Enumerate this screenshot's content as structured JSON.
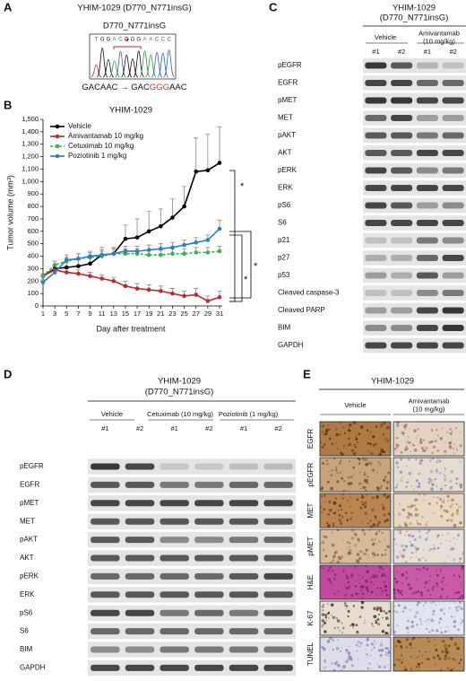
{
  "panel_labels": [
    "A",
    "B",
    "C",
    "D",
    "E"
  ],
  "sequencing": {
    "title": "YHIM-1029 (D770_N771insG)",
    "mutation": "D770_N771insG",
    "marker": "*",
    "trace_bases": [
      "T",
      "G",
      "G",
      "A",
      "C",
      "G",
      "G",
      "G",
      "A",
      "A",
      "C",
      "C",
      "C"
    ],
    "change_before": "GACAAC → GAC",
    "change_inserted": "GGG",
    "change_after": "AAC"
  },
  "chart_data": {
    "type": "line",
    "title": "YHIM-1029",
    "x_label": "Day after treatment",
    "y_label": "Tumor volume (mm³)",
    "x": [
      1,
      3,
      5,
      7,
      9,
      11,
      13,
      15,
      17,
      19,
      21,
      23,
      25,
      27,
      29,
      31
    ],
    "xlim": [
      1,
      31
    ],
    "xticks": [
      1,
      3,
      5,
      7,
      9,
      11,
      13,
      15,
      17,
      19,
      21,
      23,
      25,
      27,
      29,
      31
    ],
    "ylim": [
      0,
      1500
    ],
    "yticks": [
      0,
      100,
      200,
      300,
      400,
      500,
      600,
      700,
      800,
      900,
      {
        "value": 1000,
        "label": "1,000"
      },
      {
        "value": 1100,
        "label": "1,100"
      },
      {
        "value": 1200,
        "label": "1,200"
      },
      {
        "value": 1300,
        "label": "1,300"
      },
      {
        "value": 1400,
        "label": "1,400"
      },
      {
        "value": 1500,
        "label": "1,500"
      }
    ],
    "legend": "upper left",
    "series": [
      {
        "name": "Vehicle",
        "color": "#000000",
        "linestyle": "solid",
        "values": [
          240,
          300,
          310,
          320,
          340,
          410,
          420,
          540,
          550,
          600,
          640,
          710,
          800,
          1080,
          1090,
          1150
        ],
        "errors": [
          20,
          30,
          40,
          50,
          50,
          60,
          50,
          110,
          150,
          160,
          140,
          150,
          160,
          270,
          290,
          290
        ]
      },
      {
        "name": "Amivantamab 10 mg/kg",
        "color": "#c0282d",
        "linestyle": "solid",
        "values": [
          240,
          290,
          270,
          260,
          240,
          220,
          200,
          160,
          140,
          130,
          120,
          100,
          80,
          90,
          40,
          70
        ],
        "errors": [
          20,
          30,
          30,
          30,
          30,
          30,
          30,
          40,
          40,
          40,
          40,
          40,
          40,
          50,
          40,
          50
        ]
      },
      {
        "name": "Cetuximab 10 mg/kg",
        "color": "#3cb04a",
        "linestyle": "dashed",
        "values": [
          240,
          330,
          360,
          380,
          390,
          400,
          420,
          420,
          420,
          410,
          410,
          420,
          420,
          430,
          430,
          440
        ],
        "errors": [
          20,
          30,
          30,
          40,
          40,
          40,
          40,
          40,
          40,
          40,
          40,
          40,
          40,
          40,
          40,
          40
        ]
      },
      {
        "name": "Poziotinib 1 mg/kg",
        "color": "#2e7fc1",
        "linestyle": "solid",
        "values": [
          190,
          270,
          370,
          380,
          400,
          410,
          420,
          440,
          440,
          450,
          460,
          470,
          490,
          510,
          530,
          620
        ],
        "errors": [
          20,
          30,
          40,
          40,
          40,
          40,
          40,
          40,
          40,
          40,
          40,
          40,
          40,
          40,
          40,
          70
        ]
      }
    ],
    "annotations": [
      "*",
      "*",
      "*"
    ]
  },
  "blot_c": {
    "title": "YHIM-1029",
    "subtitle": "(D770_N771insG)",
    "groups": [
      [
        "Vehicle"
      ],
      [
        "Amivantamab",
        "(10 mg/kg)"
      ]
    ],
    "lanes": [
      "#1",
      "#2",
      "#1",
      "#2"
    ],
    "rows": [
      "pEGFR",
      "EGFR",
      "pMET",
      "MET",
      "pAKT",
      "AKT",
      "pERK",
      "ERK",
      "pS6",
      "S6",
      "p21",
      "p27",
      "p53",
      "Cleaved caspase-3",
      "Cleaved PARP",
      "BIM",
      "GAPDH"
    ]
  },
  "blot_d": {
    "title": "YHIM-1029",
    "subtitle": "(D770_N771insG)",
    "groups": [
      [
        "Vehicle"
      ],
      [
        "Cetuximab (10 mg/kg)"
      ],
      [
        "Poziotinib (1 mg/kg)"
      ]
    ],
    "lanes": [
      "#1",
      "#2",
      "#1",
      "#2",
      "#1",
      "#2"
    ],
    "rows": [
      "pEGFR",
      "EGFR",
      "pMET",
      "MET",
      "pAKT",
      "AKT",
      "pERK",
      "ERK",
      "pS6",
      "S6",
      "BIM",
      "GAPDH"
    ]
  },
  "ihc": {
    "title": "YHIM-1029",
    "columns": [
      [
        "Vehicle"
      ],
      [
        "Amivantamab",
        "(10 mg/kg)"
      ]
    ],
    "rows": [
      "EGFR",
      "pEGFR",
      "MET",
      "pMET",
      "H&E",
      "K-67",
      "TUNEL"
    ]
  }
}
